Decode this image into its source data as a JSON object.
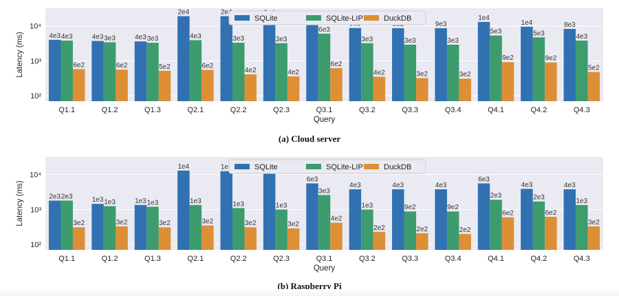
{
  "chart_data": [
    {
      "type": "bar",
      "title": "",
      "xlabel": "Query",
      "ylabel": "Latency (ms)",
      "yscale": "log",
      "ylim": [
        70,
        32000
      ],
      "yticks": [
        {
          "value": 100,
          "label": "10²"
        },
        {
          "value": 1000,
          "label": "10³"
        },
        {
          "value": 10000,
          "label": "10⁴"
        }
      ],
      "grid": true,
      "legend": "top-center",
      "categories": [
        "Q1.1",
        "Q1.2",
        "Q1.3",
        "Q2.1",
        "Q2.2",
        "Q2.3",
        "Q3.1",
        "Q3.2",
        "Q3.3",
        "Q3.4",
        "Q4.1",
        "Q4.2",
        "Q4.3"
      ],
      "series": [
        {
          "name": "SQLite",
          "color": "#3171b2",
          "values": [
            4000,
            3700,
            3600,
            19000,
            19000,
            18000,
            12000,
            8700,
            8600,
            8600,
            13000,
            9500,
            8200
          ],
          "labels": [
            "4e3",
            "4e3",
            "4e3",
            "2e4",
            "2e4",
            "2e4",
            "1e4",
            "9e3",
            "9e3",
            "9e3",
            "1e4",
            "1e4",
            "8e3"
          ]
        },
        {
          "name": "SQLite-LIP",
          "color": "#3c9c6e",
          "values": [
            3800,
            3400,
            3300,
            3900,
            3300,
            3200,
            6000,
            3200,
            2900,
            2900,
            5300,
            4700,
            3800
          ],
          "labels": [
            "4e3",
            "3e3",
            "3e3",
            "4e3",
            "3e3",
            "3e3",
            "6e3",
            "3e3",
            "3e3",
            "3e3",
            "5e3",
            "5e3",
            "4e3"
          ]
        },
        {
          "name": "DuckDB",
          "color": "#dd8f36",
          "values": [
            580,
            560,
            520,
            550,
            410,
            360,
            620,
            350,
            320,
            310,
            920,
            900,
            480
          ],
          "labels": [
            "6e2",
            "6e2",
            "5e2",
            "6e2",
            "4e2",
            "4e2",
            "6e2",
            "4e2",
            "3e2",
            "3e2",
            "9e2",
            "9e2",
            "5e2"
          ]
        }
      ]
    },
    {
      "type": "bar",
      "title": "",
      "xlabel": "Query",
      "ylabel": "Latency (ms)",
      "yscale": "log",
      "ylim": [
        70,
        32000
      ],
      "yticks": [
        {
          "value": 100,
          "label": "10²"
        },
        {
          "value": 1000,
          "label": "10³"
        },
        {
          "value": 10000,
          "label": "10⁴"
        }
      ],
      "grid": true,
      "legend": "top-center",
      "categories": [
        "Q1.1",
        "Q1.2",
        "Q1.3",
        "Q2.1",
        "Q2.2",
        "Q2.3",
        "Q3.1",
        "Q3.2",
        "Q3.3",
        "Q3.4",
        "Q4.1",
        "Q4.2",
        "Q4.3"
      ],
      "series": [
        {
          "name": "SQLite",
          "color": "#3171b2",
          "values": [
            1800,
            1450,
            1350,
            13000,
            12500,
            12000,
            5600,
            3800,
            3800,
            3800,
            5600,
            3900,
            3800
          ],
          "labels": [
            "2e3",
            "1e3",
            "1e3",
            "1e4",
            "1e4",
            "1e4",
            "6e3",
            "4e3",
            "4e3",
            "4e3",
            "6e3",
            "4e3",
            "4e3"
          ]
        },
        {
          "name": "SQLite-LIP",
          "color": "#3c9c6e",
          "values": [
            1800,
            1250,
            1200,
            1350,
            1100,
            1000,
            2600,
            1000,
            880,
            880,
            1900,
            1700,
            1350
          ],
          "labels": [
            "2e3",
            "1e3",
            "1e3",
            "1e3",
            "1e3",
            "1e3",
            "3e3",
            "1e3",
            "9e2",
            "9e2",
            "2e3",
            "2e3",
            "1e3"
          ]
        },
        {
          "name": "DuckDB",
          "color": "#dd8f36",
          "values": [
            310,
            330,
            310,
            350,
            310,
            290,
            420,
            230,
            210,
            200,
            600,
            620,
            330
          ],
          "labels": [
            "3e2",
            "3e2",
            "3e2",
            "3e2",
            "3e2",
            "3e2",
            "4e2",
            "2e2",
            "2e2",
            "2e2",
            "6e2",
            "6e2",
            "3e2"
          ]
        }
      ]
    }
  ],
  "captions": {
    "a": "(a) Cloud server",
    "b": "(b) Raspberry Pi"
  }
}
